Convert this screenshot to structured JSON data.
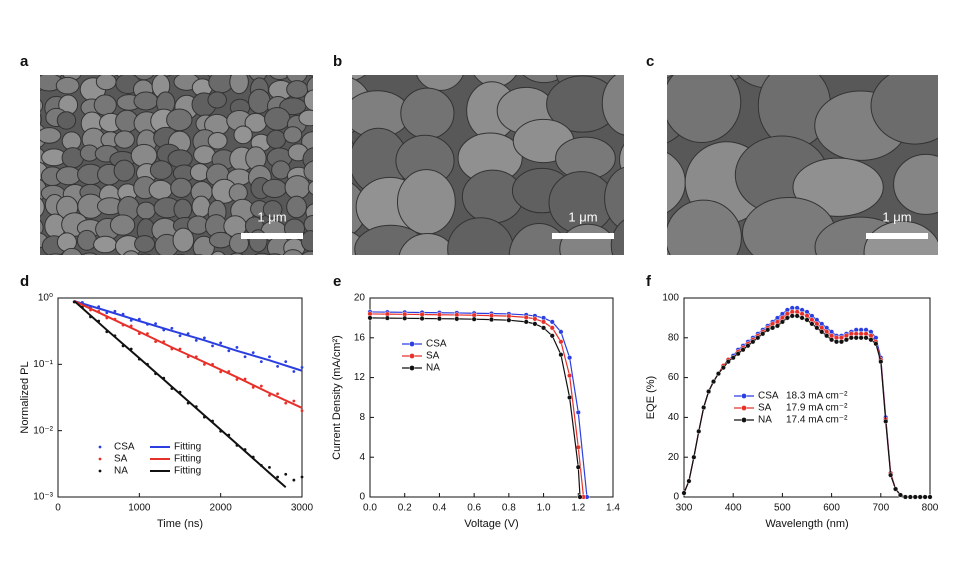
{
  "images": [
    {
      "label": "a",
      "scale_bar": "1 μm",
      "grain": 11
    },
    {
      "label": "b",
      "scale_bar": "1 μm",
      "grain": 30
    },
    {
      "label": "c",
      "scale_bar": "1 μm",
      "grain": 40
    }
  ],
  "chart_data": [
    {
      "type": "line",
      "panel": "d",
      "x_label": "Time (ns)",
      "y_label": "Normalized PL",
      "log_y": true,
      "xlim": [
        0,
        3000
      ],
      "xticks": [
        0,
        1000,
        2000,
        3000
      ],
      "ylim": [
        0.001,
        1
      ],
      "yticks": [
        {
          "value": 0.001,
          "label": "10⁻³"
        },
        {
          "value": 0.01,
          "label": "10⁻²"
        },
        {
          "value": 0.1,
          "label": "10⁻¹"
        },
        {
          "value": 1,
          "label": "10⁰"
        }
      ],
      "legend": "lower left",
      "legend_columns": 2,
      "series": [
        {
          "name": "CSA",
          "color": "#2b3fe0",
          "style": "points",
          "x": [
            200,
            300,
            400,
            500,
            600,
            700,
            800,
            900,
            1000,
            1100,
            1200,
            1300,
            1400,
            1500,
            1600,
            1700,
            1800,
            1900,
            2000,
            2100,
            2200,
            2300,
            2400,
            2500,
            2600,
            2700,
            2800,
            2900,
            3000
          ],
          "values": [
            0.88,
            0.86,
            0.73,
            0.74,
            0.6,
            0.63,
            0.57,
            0.46,
            0.48,
            0.4,
            0.41,
            0.33,
            0.35,
            0.27,
            0.29,
            0.23,
            0.25,
            0.19,
            0.21,
            0.16,
            0.18,
            0.13,
            0.15,
            0.11,
            0.13,
            0.093,
            0.11,
            0.078,
            0.09
          ]
        },
        {
          "name": "SA",
          "color": "#e8302a",
          "style": "points",
          "x": [
            200,
            300,
            400,
            500,
            600,
            700,
            800,
            900,
            1000,
            1100,
            1200,
            1300,
            1400,
            1500,
            1600,
            1700,
            1800,
            1900,
            2000,
            2100,
            2200,
            2300,
            2400,
            2500,
            2600,
            2700,
            2800,
            2900,
            3000
          ],
          "values": [
            0.87,
            0.82,
            0.66,
            0.63,
            0.5,
            0.48,
            0.39,
            0.38,
            0.29,
            0.29,
            0.22,
            0.22,
            0.17,
            0.17,
            0.13,
            0.13,
            0.1,
            0.1,
            0.077,
            0.078,
            0.059,
            0.06,
            0.045,
            0.047,
            0.034,
            0.036,
            0.026,
            0.028,
            0.02
          ]
        },
        {
          "name": "NA",
          "color": "#111111",
          "style": "points",
          "x": [
            200,
            300,
            400,
            500,
            600,
            700,
            800,
            900,
            1000,
            1100,
            1200,
            1300,
            1400,
            1500,
            1600,
            1700,
            1800,
            1900,
            2000,
            2100,
            2200,
            2300,
            2400,
            2500,
            2600,
            2700,
            2800,
            2900,
            3000
          ],
          "values": [
            0.87,
            0.73,
            0.52,
            0.45,
            0.31,
            0.27,
            0.19,
            0.17,
            0.12,
            0.1,
            0.072,
            0.062,
            0.043,
            0.038,
            0.026,
            0.023,
            0.016,
            0.014,
            0.0098,
            0.0086,
            0.006,
            0.0052,
            0.004,
            0.003,
            0.0028,
            0.002,
            0.0022,
            0.0018,
            0.002
          ]
        },
        {
          "name": "Fitting",
          "color": "#2b3fe0",
          "style": "line",
          "x": [
            200,
            600,
            1000,
            1400,
            1800,
            2200,
            2600,
            3000
          ],
          "values": [
            0.9,
            0.64,
            0.45,
            0.32,
            0.23,
            0.16,
            0.115,
            0.08
          ]
        },
        {
          "name": "Fitting",
          "color": "#e8302a",
          "style": "line",
          "x": [
            200,
            600,
            1000,
            1400,
            1800,
            2200,
            2600,
            3000
          ],
          "values": [
            0.9,
            0.53,
            0.31,
            0.18,
            0.108,
            0.064,
            0.037,
            0.022
          ]
        },
        {
          "name": "Fitting",
          "color": "#111111",
          "style": "line",
          "x": [
            200,
            600,
            1000,
            1400,
            1800,
            2200,
            2600,
            2800
          ],
          "values": [
            0.9,
            0.33,
            0.124,
            0.046,
            0.017,
            0.0063,
            0.0023,
            0.0014
          ]
        }
      ]
    },
    {
      "type": "line",
      "panel": "e",
      "x_label": "Voltage (V)",
      "y_label": "Current Density (mA/cm²)",
      "xlim": [
        0,
        1.4
      ],
      "xticks": [
        {
          "value": 0,
          "label": "0.0"
        },
        0.2,
        0.4,
        0.6,
        0.8,
        {
          "value": 1,
          "label": "1.0"
        },
        1.2,
        1.4
      ],
      "ylim": [
        0,
        20
      ],
      "yticks": [
        0,
        4,
        8,
        12,
        16,
        20
      ],
      "legend": "center left",
      "series": [
        {
          "name": "CSA",
          "color": "#2b3fe0",
          "style": "line-markers",
          "x": [
            0,
            0.1,
            0.2,
            0.3,
            0.4,
            0.5,
            0.6,
            0.7,
            0.8,
            0.9,
            0.95,
            1.0,
            1.05,
            1.1,
            1.15,
            1.2,
            1.25
          ],
          "values": [
            18.6,
            18.58,
            18.56,
            18.54,
            18.52,
            18.5,
            18.47,
            18.44,
            18.4,
            18.3,
            18.2,
            18.0,
            17.6,
            16.6,
            14.0,
            8.5,
            0
          ]
        },
        {
          "name": "SA",
          "color": "#e8302a",
          "style": "line-markers",
          "x": [
            0,
            0.1,
            0.2,
            0.3,
            0.4,
            0.5,
            0.6,
            0.7,
            0.8,
            0.9,
            0.95,
            1.0,
            1.05,
            1.1,
            1.15,
            1.2,
            1.23
          ],
          "values": [
            18.4,
            18.38,
            18.36,
            18.34,
            18.32,
            18.3,
            18.27,
            18.23,
            18.18,
            18.05,
            17.9,
            17.6,
            17.0,
            15.6,
            12.2,
            5.0,
            0
          ]
        },
        {
          "name": "NA",
          "color": "#111111",
          "style": "line-markers",
          "x": [
            0,
            0.1,
            0.2,
            0.3,
            0.4,
            0.5,
            0.6,
            0.7,
            0.8,
            0.9,
            0.95,
            1.0,
            1.05,
            1.1,
            1.15,
            1.2,
            1.21
          ],
          "values": [
            18.0,
            17.98,
            17.96,
            17.94,
            17.92,
            17.9,
            17.87,
            17.83,
            17.77,
            17.6,
            17.4,
            17.0,
            16.2,
            14.3,
            10.0,
            3.0,
            0
          ]
        }
      ]
    },
    {
      "type": "line",
      "panel": "f",
      "x_label": "Wavelength (nm)",
      "y_label": "EQE (%)",
      "xlim": [
        300,
        800
      ],
      "xticks": [
        300,
        400,
        500,
        600,
        700,
        800
      ],
      "ylim": [
        0,
        100
      ],
      "yticks": [
        0,
        20,
        40,
        60,
        80,
        100
      ],
      "legend": "lower center",
      "x": [
        300,
        310,
        320,
        330,
        340,
        350,
        360,
        370,
        380,
        390,
        400,
        410,
        420,
        430,
        440,
        450,
        460,
        470,
        480,
        490,
        500,
        510,
        520,
        530,
        540,
        550,
        560,
        570,
        580,
        590,
        600,
        610,
        620,
        630,
        640,
        650,
        660,
        670,
        680,
        690,
        700,
        710,
        720,
        730,
        740,
        750,
        760,
        770,
        780,
        790,
        800
      ],
      "series": [
        {
          "name": "CSA",
          "jsc": "18.3 mA cm⁻²",
          "color": "#2b3fe0",
          "style": "line-markers",
          "values": [
            2,
            8,
            20,
            33,
            45,
            53,
            58,
            62,
            66,
            69,
            71,
            74,
            76,
            78,
            80,
            82,
            84,
            86,
            88,
            90,
            92,
            94,
            95,
            95,
            94,
            93,
            91,
            89,
            87,
            85,
            83,
            81,
            81,
            82,
            83,
            84,
            84,
            84,
            83,
            80,
            70,
            40,
            12,
            4,
            1,
            0,
            0,
            0,
            0,
            0,
            0
          ]
        },
        {
          "name": "SA",
          "jsc": "17.9 mA cm⁻²",
          "color": "#e8302a",
          "style": "line-markers",
          "values": [
            2,
            8,
            20,
            33,
            45,
            53,
            58,
            62,
            66,
            69,
            70,
            73,
            75,
            77,
            79,
            81,
            83,
            85,
            87,
            88,
            90,
            92,
            93,
            93,
            92,
            91,
            89,
            87,
            85,
            83,
            81,
            80,
            80,
            81,
            82,
            82,
            82,
            82,
            81,
            78,
            69,
            39,
            12,
            4,
            1,
            0,
            0,
            0,
            0,
            0,
            0
          ]
        },
        {
          "name": "NA",
          "jsc": "17.4 mA cm⁻²",
          "color": "#111111",
          "style": "line-markers",
          "values": [
            2,
            8,
            20,
            33,
            45,
            53,
            58,
            62,
            65,
            68,
            70,
            72,
            74,
            76,
            78,
            80,
            82,
            84,
            85,
            86,
            88,
            90,
            91,
            91,
            90,
            89,
            87,
            85,
            83,
            81,
            79,
            78,
            78,
            79,
            80,
            80,
            80,
            80,
            79,
            77,
            68,
            38,
            11,
            4,
            1,
            0,
            0,
            0,
            0,
            0,
            0
          ]
        }
      ]
    }
  ]
}
